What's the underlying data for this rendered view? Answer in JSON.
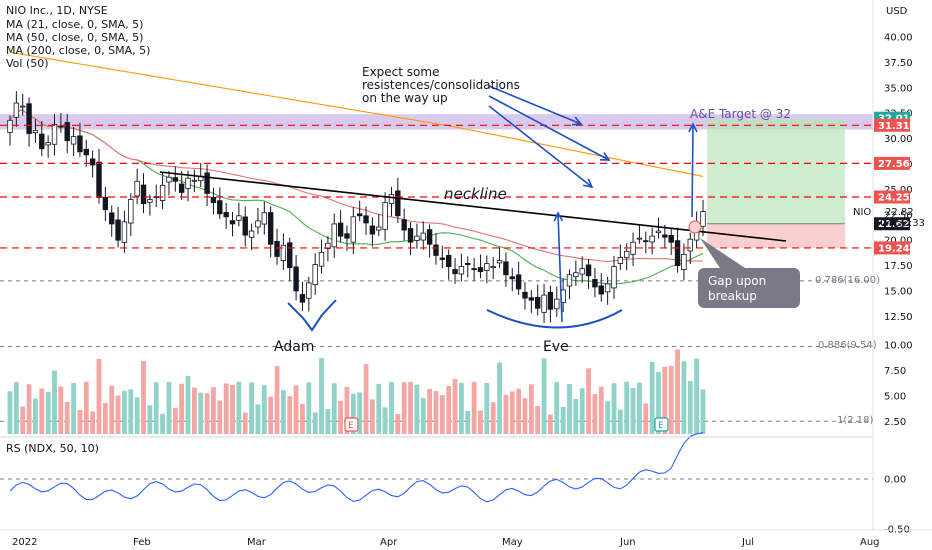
{
  "header": {
    "title": "NIO Inc., 1D, NYSE",
    "indicators": [
      "MA (21, close, 0, SMA, 5)",
      "MA (50, close, 0, SMA, 5)",
      "MA (200, close, 0, SMA, 5)",
      "Vol (50)"
    ]
  },
  "currency_label": "USD",
  "symbol_label": "NIO",
  "last_price": "22.82",
  "countdown": "04:52:33",
  "colors": {
    "up": "#26a69a",
    "down": "#ef5350",
    "ma21": "#4caf50",
    "ma50": "#e57373",
    "ma200": "#ff9800",
    "red_dash": "#ff0000",
    "blue": "#1e4fc2",
    "neckline": "#000000",
    "target_zone": "#c9b8e8",
    "rs_line": "#2962ff",
    "vol_up": "#8fd3c8",
    "vol_down": "#f4a6a4"
  },
  "annotations": {
    "consolidation": [
      "Expect some",
      "resistences/consolidations",
      "on the way up"
    ],
    "target": "A&E Target @ 32",
    "neckline": "neckline",
    "adam": "Adam",
    "eve": "Eve",
    "gap": [
      "Gap upon",
      "breakup"
    ],
    "fib1": "0.786(16.00)",
    "fib2": "0.886(9.54)",
    "fib3": "1(2.18)"
  },
  "rs_label": "RS (NDX, 50, 10)",
  "earnings_marker": "E",
  "chart_data": {
    "type": "candlestick",
    "title": "NIO Inc., 1D, NYSE",
    "x_ticks": [
      "2022",
      "Feb",
      "Mar",
      "Apr",
      "May",
      "Jun",
      "Jul",
      "Aug"
    ],
    "price_ticks": [
      "40.00",
      "37.50",
      "35.00",
      "32.50",
      "30.00",
      "27.50",
      "25.00",
      "22.50",
      "20.00",
      "17.50",
      "15.00",
      "12.50",
      "10.00",
      "7.50",
      "5.00",
      "2.50"
    ],
    "ylim": [
      1.5,
      42
    ],
    "levels": [
      {
        "label": "32.01",
        "value": 32.01,
        "color": "#26a69a"
      },
      {
        "label": "31.31",
        "value": 31.31,
        "color": "#ef5350"
      },
      {
        "label": "27.56",
        "value": 27.56,
        "color": "#ef5350"
      },
      {
        "label": "24.25",
        "value": 24.25,
        "color": "#ef5350"
      },
      {
        "label": "21.62",
        "value": 21.62,
        "color": "#131722"
      },
      {
        "label": "19.24",
        "value": 19.24,
        "color": "#ef5350"
      }
    ],
    "closes": [
      31.8,
      33.5,
      33.2,
      30.5,
      30.8,
      29.0,
      29.6,
      31.4,
      31.2,
      29.8,
      30.2,
      28.7,
      28.4,
      27.4,
      24.2,
      23.0,
      21.6,
      20.0,
      21.8,
      24.0,
      25.8,
      23.6,
      24.0,
      24.3,
      25.4,
      26.2,
      25.8,
      24.7,
      26.1,
      25.9,
      26.3,
      24.6,
      23.7,
      22.6,
      22.3,
      21.6,
      22.4,
      20.5,
      20.9,
      21.9,
      22.7,
      19.6,
      18.4,
      19.5,
      17.3,
      15.0,
      13.9,
      15.8,
      17.6,
      18.8,
      19.7,
      21.6,
      20.4,
      20.2,
      22.3,
      22.4,
      21.7,
      20.6,
      21.3,
      23.7,
      24.5,
      22.4,
      21.0,
      19.8,
      20.4,
      20.7,
      19.6,
      18.5,
      18.1,
      17.4,
      16.7,
      17.4,
      17.6,
      17.1,
      16.9,
      17.7,
      17.4,
      18.0,
      16.6,
      16.2,
      15.2,
      14.3,
      14.1,
      13.3,
      14.6,
      13.2,
      14.2,
      15.1,
      16.6,
      16.8,
      17.2,
      16.5,
      15.4,
      14.7,
      15.7,
      17.4,
      18.3,
      18.9,
      19.8,
      20.2,
      19.9,
      20.4,
      20.9,
      20.3,
      19.8,
      17.5,
      18.6,
      20.1,
      21.6,
      22.82
    ],
    "volume_ticks": [
      "10.00",
      "7.50",
      "5.00",
      "2.50"
    ],
    "rs_ticks": [
      "0.00",
      "-0.50"
    ]
  }
}
